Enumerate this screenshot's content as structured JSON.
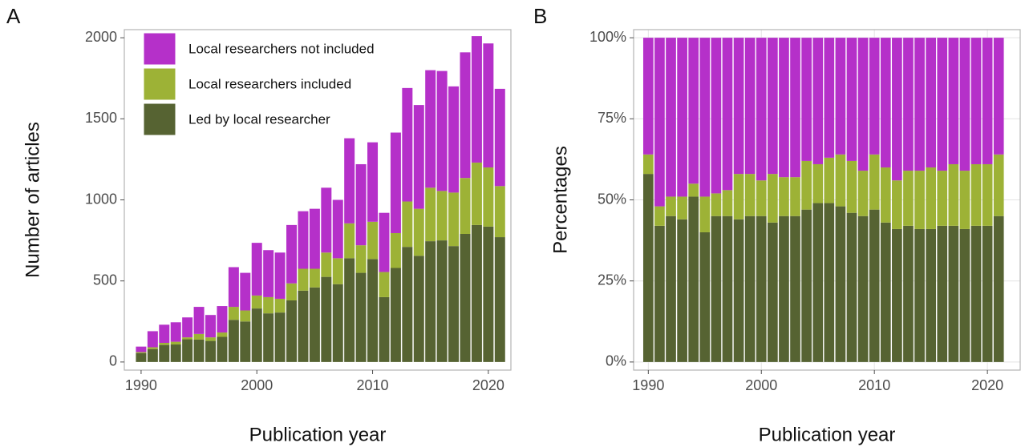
{
  "chart_data": [
    {
      "type": "bar",
      "stacked": true,
      "tag": "A",
      "xlabel": "Publication year",
      "ylabel": "Number of articles",
      "x": [
        1990,
        1991,
        1992,
        1993,
        1994,
        1995,
        1996,
        1997,
        1998,
        1999,
        2000,
        2001,
        2002,
        2003,
        2004,
        2005,
        2006,
        2007,
        2008,
        2009,
        2010,
        2011,
        2012,
        2013,
        2014,
        2015,
        2016,
        2017,
        2018,
        2019,
        2020,
        2021
      ],
      "series": [
        {
          "name": "Led by local researcher",
          "color": "#566332",
          "values": [
            55,
            80,
            105,
            108,
            140,
            138,
            130,
            155,
            260,
            250,
            330,
            300,
            305,
            380,
            440,
            460,
            525,
            480,
            640,
            550,
            635,
            400,
            580,
            710,
            655,
            745,
            750,
            715,
            790,
            845,
            835,
            770
          ]
        },
        {
          "name": "Local researchers included",
          "color": "#9db236",
          "values": [
            6,
            11,
            13,
            17,
            12,
            35,
            22,
            27,
            80,
            68,
            80,
            100,
            85,
            105,
            135,
            115,
            150,
            160,
            215,
            170,
            230,
            155,
            215,
            280,
            290,
            330,
            305,
            330,
            345,
            385,
            365,
            315
          ]
        },
        {
          "name": "Local researchers not included",
          "color": "#b530c9",
          "values": [
            34,
            99,
            112,
            120,
            123,
            167,
            138,
            163,
            245,
            232,
            325,
            290,
            285,
            360,
            355,
            370,
            400,
            360,
            525,
            500,
            490,
            365,
            620,
            700,
            640,
            725,
            740,
            655,
            775,
            780,
            765,
            600
          ]
        }
      ],
      "xlim": [
        1988.55,
        2021.95
      ],
      "ylim": [
        -50,
        2050
      ],
      "xticks": [
        1990,
        2000,
        2010,
        2020
      ],
      "yticks": [
        0,
        500,
        1000,
        1500,
        2000
      ],
      "grid": false,
      "legend": "top-left"
    },
    {
      "type": "bar",
      "stacked": true,
      "tag": "B",
      "xlabel": "Publication year",
      "ylabel": "Percentages",
      "x": [
        1990,
        1991,
        1992,
        1993,
        1994,
        1995,
        1996,
        1997,
        1998,
        1999,
        2000,
        2001,
        2002,
        2003,
        2004,
        2005,
        2006,
        2007,
        2008,
        2009,
        2010,
        2011,
        2012,
        2013,
        2014,
        2015,
        2016,
        2017,
        2018,
        2019,
        2020,
        2021
      ],
      "series": [
        {
          "name": "Led by local researcher",
          "color": "#566332",
          "values": [
            58,
            42,
            45,
            44,
            51,
            40,
            45,
            45,
            44,
            45,
            45,
            43,
            45,
            45,
            47,
            49,
            49,
            48,
            46,
            45,
            47,
            43,
            41,
            42,
            41,
            41,
            42,
            42,
            41,
            42,
            42,
            45
          ]
        },
        {
          "name": "Local researchers included",
          "color": "#9db236",
          "values": [
            6,
            6,
            6,
            7,
            4,
            11,
            7,
            8,
            14,
            13,
            11,
            15,
            12,
            12,
            15,
            12,
            14,
            16,
            16,
            14,
            17,
            17,
            15,
            17,
            18,
            19,
            17,
            19,
            18,
            19,
            19,
            19
          ]
        },
        {
          "name": "Local researchers not included",
          "color": "#b530c9",
          "values": [
            36,
            52,
            49,
            49,
            45,
            49,
            48,
            47,
            42,
            42,
            44,
            42,
            43,
            43,
            38,
            39,
            37,
            36,
            38,
            41,
            36,
            40,
            44,
            41,
            41,
            40,
            41,
            39,
            41,
            39,
            39,
            36
          ]
        }
      ],
      "xlim": [
        1988.7,
        2022.9
      ],
      "ylim": [
        -2.5,
        102.5
      ],
      "xticks": [
        1990,
        2000,
        2010,
        2020
      ],
      "yticks": [
        {
          "value": 0,
          "label": "0%"
        },
        {
          "value": 25,
          "label": "25%"
        },
        {
          "value": 50,
          "label": "50%"
        },
        {
          "value": 75,
          "label": "75%"
        },
        {
          "value": 100,
          "label": "100%"
        }
      ],
      "grid": true
    }
  ]
}
